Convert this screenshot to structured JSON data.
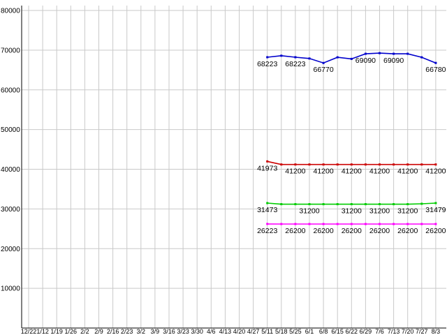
{
  "chart_data": {
    "type": "line",
    "title": "",
    "x_labels": [
      "12/22",
      "1/12",
      "1/19",
      "1/26",
      "2/2",
      "2/9",
      "2/16",
      "2/23",
      "3/2",
      "3/9",
      "3/16",
      "3/23",
      "3/30",
      "4/6",
      "4/13",
      "4/20",
      "4/27",
      "5/11",
      "5/18",
      "5/25",
      "6/1",
      "6/8",
      "6/15",
      "6/22",
      "6/29",
      "7/6",
      "7/13",
      "7/20",
      "7/27",
      "8/3"
    ],
    "ylim": [
      0,
      80000
    ],
    "y_ticks": [
      {
        "value": 80000,
        "label": "80000"
      },
      {
        "value": 70000,
        "label": "70000"
      },
      {
        "value": 60000,
        "label": "60000"
      },
      {
        "value": 50000,
        "label": "50000"
      },
      {
        "value": 40000,
        "label": "40000"
      },
      {
        "value": 30000,
        "label": "30000"
      },
      {
        "value": 20000,
        "label": "20000"
      },
      {
        "value": 10000,
        "label": "10000"
      }
    ],
    "grid": true,
    "legend": null,
    "series": [
      {
        "name": "series-blue",
        "color": "#0000cc",
        "start_index": 17,
        "start_x_label": "5/11",
        "values": [
          68223,
          68600,
          68223,
          67900,
          66770,
          68200,
          67800,
          69090,
          69250,
          69090,
          69090,
          68200,
          66780
        ],
        "point_labels": [
          {
            "index": 17,
            "text": "68223"
          },
          {
            "index": 19,
            "text": "68223"
          },
          {
            "index": 21,
            "text": "66770"
          },
          {
            "index": 24,
            "text": "69090"
          },
          {
            "index": 26,
            "text": "69090"
          },
          {
            "index": 29,
            "text": "66780"
          }
        ]
      },
      {
        "name": "series-red",
        "color": "#cc0000",
        "start_index": 17,
        "start_x_label": "5/11",
        "values": [
          41973,
          41200,
          41200,
          41200,
          41200,
          41200,
          41200,
          41200,
          41200,
          41200,
          41200,
          41200,
          41200
        ],
        "point_labels": [
          {
            "index": 17,
            "text": "41973"
          },
          {
            "index": 19,
            "text": "41200"
          },
          {
            "index": 21,
            "text": "41200"
          },
          {
            "index": 23,
            "text": "41200"
          },
          {
            "index": 25,
            "text": "41200"
          },
          {
            "index": 27,
            "text": "41200"
          },
          {
            "index": 29,
            "text": "41200"
          }
        ]
      },
      {
        "name": "series-green",
        "color": "#00cc00",
        "start_index": 17,
        "start_x_label": "5/11",
        "values": [
          31473,
          31200,
          31200,
          31200,
          31200,
          31200,
          31200,
          31200,
          31200,
          31200,
          31200,
          31300,
          31479
        ],
        "point_labels": [
          {
            "index": 17,
            "text": "31473"
          },
          {
            "index": 20,
            "text": "31200"
          },
          {
            "index": 23,
            "text": "31200"
          },
          {
            "index": 25,
            "text": "31200"
          },
          {
            "index": 27,
            "text": "31200"
          },
          {
            "index": 29,
            "text": "31479"
          }
        ]
      },
      {
        "name": "series-magenta",
        "color": "#ff00ff",
        "start_index": 17,
        "start_x_label": "5/11",
        "values": [
          26223,
          26200,
          26200,
          26200,
          26200,
          26200,
          26200,
          26200,
          26200,
          26200,
          26200,
          26200,
          26200
        ],
        "point_labels": [
          {
            "index": 17,
            "text": "26223"
          },
          {
            "index": 19,
            "text": "26200"
          },
          {
            "index": 21,
            "text": "26200"
          },
          {
            "index": 23,
            "text": "26200"
          },
          {
            "index": 25,
            "text": "26200"
          },
          {
            "index": 27,
            "text": "26200"
          },
          {
            "index": 29,
            "text": "26200"
          }
        ]
      }
    ],
    "colors": {
      "grid": "#c9c9c9",
      "axis": "#000000",
      "text": "#000000",
      "background": "#ffffff"
    }
  }
}
